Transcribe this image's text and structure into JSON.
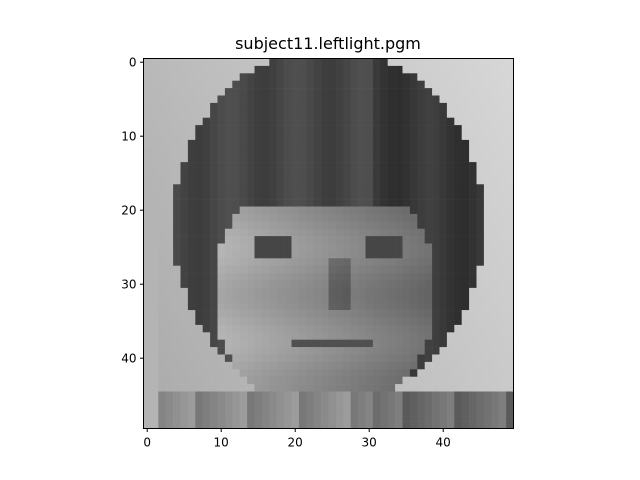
{
  "chart_data": {
    "type": "heatmap",
    "title": "subject11.leftlight.pgm",
    "colormap": "gray",
    "xlim": [
      -0.5,
      49.5
    ],
    "ylim": [
      49.5,
      -0.5
    ],
    "x_ticks": [
      0,
      10,
      20,
      30,
      40
    ],
    "y_ticks": [
      0,
      10,
      20,
      30,
      40
    ],
    "x_tick_labels": [
      "0",
      "10",
      "20",
      "30",
      "40"
    ],
    "y_tick_labels": [
      "0",
      "10",
      "20",
      "30",
      "40"
    ],
    "image_size": [
      50,
      50
    ],
    "description_values": "50x50 grayscale face image; values in [0,255]"
  }
}
